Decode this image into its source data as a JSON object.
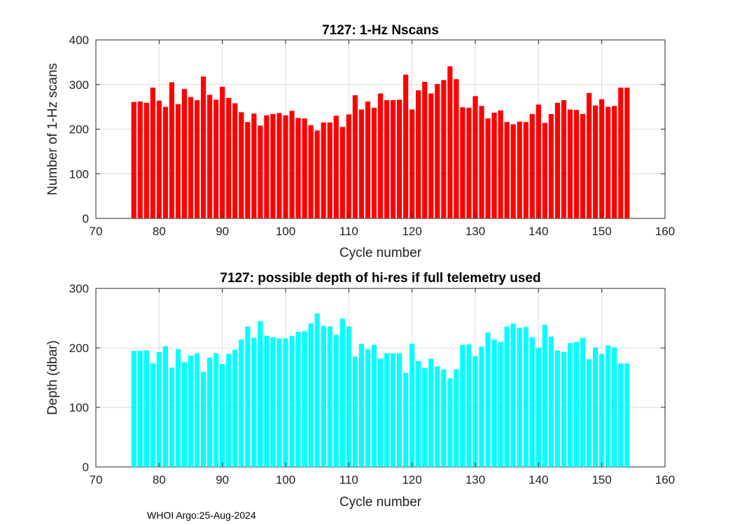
{
  "chart_data": [
    {
      "type": "bar",
      "title": "7127: 1-Hz Nscans",
      "xlabel": "Cycle number",
      "ylabel": "Number of 1-Hz scans",
      "xlim": [
        70,
        160
      ],
      "ylim": [
        0,
        400
      ],
      "xticks": [
        70,
        80,
        90,
        100,
        110,
        120,
        130,
        140,
        150,
        160
      ],
      "yticks": [
        0,
        100,
        200,
        300,
        400
      ],
      "grid": true,
      "color": "#ff0000",
      "x": [
        76,
        77,
        78,
        79,
        80,
        81,
        82,
        83,
        84,
        85,
        86,
        87,
        88,
        89,
        90,
        91,
        92,
        93,
        94,
        95,
        96,
        97,
        98,
        99,
        100,
        101,
        102,
        103,
        104,
        105,
        106,
        107,
        108,
        109,
        110,
        111,
        112,
        113,
        114,
        115,
        116,
        117,
        118,
        119,
        120,
        121,
        122,
        123,
        124,
        125,
        126,
        127,
        128,
        129,
        130,
        131,
        132,
        133,
        134,
        135,
        136,
        137,
        138,
        139,
        140,
        141,
        142,
        143,
        144,
        145,
        146,
        147,
        148,
        149,
        150,
        151,
        152,
        153,
        154
      ],
      "values": [
        261,
        262,
        259,
        293,
        264,
        250,
        305,
        256,
        290,
        272,
        265,
        318,
        277,
        266,
        295,
        270,
        258,
        238,
        216,
        235,
        208,
        231,
        234,
        236,
        231,
        241,
        225,
        224,
        209,
        197,
        215,
        215,
        230,
        205,
        233,
        276,
        244,
        262,
        248,
        280,
        265,
        265,
        266,
        322,
        244,
        287,
        306,
        280,
        301,
        310,
        341,
        312,
        249,
        248,
        274,
        252,
        224,
        237,
        242,
        216,
        211,
        217,
        216,
        234,
        255,
        214,
        234,
        259,
        265,
        244,
        243,
        234,
        281,
        253,
        267,
        250,
        252,
        293,
        293
      ]
    },
    {
      "type": "bar",
      "title": "7127: possible depth of hi-res if full telemetry used",
      "xlabel": "Cycle number",
      "ylabel": "Depth (dbar)",
      "xlim": [
        70,
        160
      ],
      "ylim": [
        0,
        300
      ],
      "xticks": [
        70,
        80,
        90,
        100,
        110,
        120,
        130,
        140,
        150,
        160
      ],
      "yticks": [
        0,
        100,
        200,
        300
      ],
      "grid": true,
      "color": "#00ffff",
      "x": [
        76,
        77,
        78,
        79,
        80,
        81,
        82,
        83,
        84,
        85,
        86,
        87,
        88,
        89,
        90,
        91,
        92,
        93,
        94,
        95,
        96,
        97,
        98,
        99,
        100,
        101,
        102,
        103,
        104,
        105,
        106,
        107,
        108,
        109,
        110,
        111,
        112,
        113,
        114,
        115,
        116,
        117,
        118,
        119,
        120,
        121,
        122,
        123,
        124,
        125,
        126,
        127,
        128,
        129,
        130,
        131,
        132,
        133,
        134,
        135,
        136,
        137,
        138,
        139,
        140,
        141,
        142,
        143,
        144,
        145,
        146,
        147,
        148,
        149,
        150,
        151,
        152,
        153,
        154
      ],
      "values": [
        195,
        195,
        196,
        174,
        193,
        203,
        167,
        198,
        176,
        187,
        191,
        160,
        184,
        191,
        173,
        190,
        197,
        214,
        236,
        217,
        245,
        220,
        218,
        216,
        216,
        220,
        227,
        228,
        241,
        258,
        237,
        236,
        222,
        249,
        236,
        185,
        207,
        198,
        205,
        182,
        191,
        191,
        191,
        158,
        207,
        178,
        166,
        182,
        169,
        164,
        149,
        164,
        205,
        206,
        186,
        202,
        226,
        214,
        210,
        236,
        241,
        234,
        235,
        218,
        200,
        239,
        219,
        196,
        193,
        208,
        210,
        217,
        181,
        201,
        190,
        204,
        201,
        174,
        174
      ]
    }
  ],
  "footer": {
    "text": "WHOI Argo:25-Aug-2024"
  }
}
